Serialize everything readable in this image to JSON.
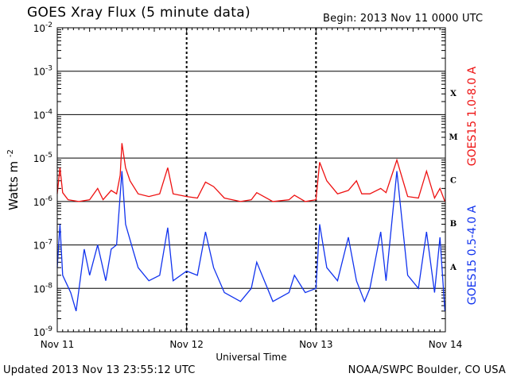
{
  "header": {
    "title": "GOES Xray Flux (5 minute data)",
    "begin": "Begin:  2013 Nov 11 0000 UTC"
  },
  "footer": {
    "updated": "Updated 2013 Nov 13 23:55:12 UTC",
    "credit": "NOAA/SWPC Boulder, CO USA"
  },
  "colors": {
    "long_channel": "#ee1111",
    "short_channel": "#1133ee",
    "axes": "#000000"
  },
  "chart_data": {
    "type": "line",
    "title": "GOES Xray Flux (5 minute data)",
    "xlabel": "Universal Time",
    "ylabel": "Watts m",
    "ylabel_superscript": "-2",
    "yscale": "log",
    "ylim": [
      1e-09,
      0.01
    ],
    "xlim": [
      "2013-11-11 00:00",
      "2013-11-14 00:00"
    ],
    "x_ticks": [
      "Nov 11",
      "Nov 12",
      "Nov 13",
      "Nov 14"
    ],
    "y_ticks": [
      {
        "base": "10",
        "exp": "-2"
      },
      {
        "base": "10",
        "exp": "-3"
      },
      {
        "base": "10",
        "exp": "-4"
      },
      {
        "base": "10",
        "exp": "-5"
      },
      {
        "base": "10",
        "exp": "-6"
      },
      {
        "base": "10",
        "exp": "-7"
      },
      {
        "base": "10",
        "exp": "-8"
      },
      {
        "base": "10",
        "exp": "-9"
      }
    ],
    "flare_classes": [
      {
        "label": "X",
        "flux": 0.000316
      },
      {
        "label": "M",
        "flux": 3.16e-05
      },
      {
        "label": "C",
        "flux": 3.16e-06
      },
      {
        "label": "B",
        "flux": 3.16e-07
      },
      {
        "label": "A",
        "flux": 3.16e-08
      }
    ],
    "grid": true,
    "series": [
      {
        "name": "GOES15 1.0-8.0 A",
        "color": "#ee1111",
        "points": [
          [
            "2013-11-11 00:00",
            1.5e-06
          ],
          [
            "2013-11-11 00:30",
            6e-06
          ],
          [
            "2013-11-11 01:00",
            1.6e-06
          ],
          [
            "2013-11-11 02:00",
            1.1e-06
          ],
          [
            "2013-11-11 04:00",
            1e-06
          ],
          [
            "2013-11-11 06:00",
            1.1e-06
          ],
          [
            "2013-11-11 07:30",
            2e-06
          ],
          [
            "2013-11-11 08:30",
            1.1e-06
          ],
          [
            "2013-11-11 10:00",
            1.8e-06
          ],
          [
            "2013-11-11 11:00",
            1.5e-06
          ],
          [
            "2013-11-11 11:40",
            4e-06
          ],
          [
            "2013-11-11 12:00",
            2.2e-05
          ],
          [
            "2013-11-11 12:40",
            6e-06
          ],
          [
            "2013-11-11 13:30",
            3e-06
          ],
          [
            "2013-11-11 15:00",
            1.5e-06
          ],
          [
            "2013-11-11 17:00",
            1.3e-06
          ],
          [
            "2013-11-11 19:00",
            1.5e-06
          ],
          [
            "2013-11-11 20:30",
            6e-06
          ],
          [
            "2013-11-11 21:30",
            1.5e-06
          ],
          [
            "2013-11-12 00:00",
            1.3e-06
          ],
          [
            "2013-11-12 02:00",
            1.2e-06
          ],
          [
            "2013-11-12 03:30",
            2.8e-06
          ],
          [
            "2013-11-12 05:00",
            2.2e-06
          ],
          [
            "2013-11-12 07:00",
            1.2e-06
          ],
          [
            "2013-11-12 10:00",
            1e-06
          ],
          [
            "2013-11-12 12:00",
            1.1e-06
          ],
          [
            "2013-11-12 13:00",
            1.6e-06
          ],
          [
            "2013-11-12 16:00",
            1e-06
          ],
          [
            "2013-11-12 19:00",
            1.1e-06
          ],
          [
            "2013-11-12 20:00",
            1.4e-06
          ],
          [
            "2013-11-12 22:00",
            1e-06
          ],
          [
            "2013-11-13 00:00",
            1.1e-06
          ],
          [
            "2013-11-13 00:40",
            8e-06
          ],
          [
            "2013-11-13 02:00",
            3e-06
          ],
          [
            "2013-11-13 04:00",
            1.5e-06
          ],
          [
            "2013-11-13 06:00",
            1.8e-06
          ],
          [
            "2013-11-13 07:30",
            3e-06
          ],
          [
            "2013-11-13 08:30",
            1.5e-06
          ],
          [
            "2013-11-13 10:00",
            1.5e-06
          ],
          [
            "2013-11-13 12:00",
            2e-06
          ],
          [
            "2013-11-13 13:00",
            1.6e-06
          ],
          [
            "2013-11-13 15:00",
            9e-06
          ],
          [
            "2013-11-13 17:00",
            1.3e-06
          ],
          [
            "2013-11-13 19:00",
            1.2e-06
          ],
          [
            "2013-11-13 20:30",
            5e-06
          ],
          [
            "2013-11-13 22:00",
            1.2e-06
          ],
          [
            "2013-11-13 23:00",
            2e-06
          ],
          [
            "2013-11-13 23:55",
            1e-06
          ]
        ]
      },
      {
        "name": "GOES15 0.5-4.0 A",
        "color": "#1133ee",
        "points": [
          [
            "2013-11-11 00:00",
            3e-08
          ],
          [
            "2013-11-11 00:30",
            3e-07
          ],
          [
            "2013-11-11 01:00",
            2e-08
          ],
          [
            "2013-11-11 02:30",
            8e-09
          ],
          [
            "2013-11-11 03:30",
            3e-09
          ],
          [
            "2013-11-11 05:00",
            8e-08
          ],
          [
            "2013-11-11 06:00",
            2e-08
          ],
          [
            "2013-11-11 07:30",
            1e-07
          ],
          [
            "2013-11-11 09:00",
            1.5e-08
          ],
          [
            "2013-11-11 10:00",
            8e-08
          ],
          [
            "2013-11-11 11:00",
            1e-07
          ],
          [
            "2013-11-11 12:00",
            5e-06
          ],
          [
            "2013-11-11 12:40",
            3e-07
          ],
          [
            "2013-11-11 14:00",
            8e-08
          ],
          [
            "2013-11-11 15:00",
            3e-08
          ],
          [
            "2013-11-11 17:00",
            1.5e-08
          ],
          [
            "2013-11-11 19:00",
            2e-08
          ],
          [
            "2013-11-11 20:30",
            2.5e-07
          ],
          [
            "2013-11-11 21:30",
            1.5e-08
          ],
          [
            "2013-11-12 00:00",
            2.5e-08
          ],
          [
            "2013-11-12 02:00",
            2e-08
          ],
          [
            "2013-11-12 03:30",
            2e-07
          ],
          [
            "2013-11-12 05:00",
            3e-08
          ],
          [
            "2013-11-12 07:00",
            8e-09
          ],
          [
            "2013-11-12 10:00",
            5e-09
          ],
          [
            "2013-11-12 12:00",
            1e-08
          ],
          [
            "2013-11-12 13:00",
            4e-08
          ],
          [
            "2013-11-12 16:00",
            5e-09
          ],
          [
            "2013-11-12 19:00",
            8e-09
          ],
          [
            "2013-11-12 20:00",
            2e-08
          ],
          [
            "2013-11-12 22:00",
            8e-09
          ],
          [
            "2013-11-13 00:00",
            1e-08
          ],
          [
            "2013-11-13 00:40",
            3e-07
          ],
          [
            "2013-11-13 02:00",
            3e-08
          ],
          [
            "2013-11-13 04:00",
            1.5e-08
          ],
          [
            "2013-11-13 06:00",
            1.5e-07
          ],
          [
            "2013-11-13 07:30",
            1.5e-08
          ],
          [
            "2013-11-13 09:00",
            5e-09
          ],
          [
            "2013-11-13 10:00",
            1e-08
          ],
          [
            "2013-11-13 12:00",
            2e-07
          ],
          [
            "2013-11-13 13:00",
            1.5e-08
          ],
          [
            "2013-11-13 15:00",
            5e-06
          ],
          [
            "2013-11-13 17:00",
            2e-08
          ],
          [
            "2013-11-13 19:00",
            1e-08
          ],
          [
            "2013-11-13 20:30",
            2e-07
          ],
          [
            "2013-11-13 22:00",
            8e-09
          ],
          [
            "2013-11-13 23:00",
            1.5e-07
          ],
          [
            "2013-11-13 23:55",
            3e-09
          ]
        ]
      }
    ]
  }
}
